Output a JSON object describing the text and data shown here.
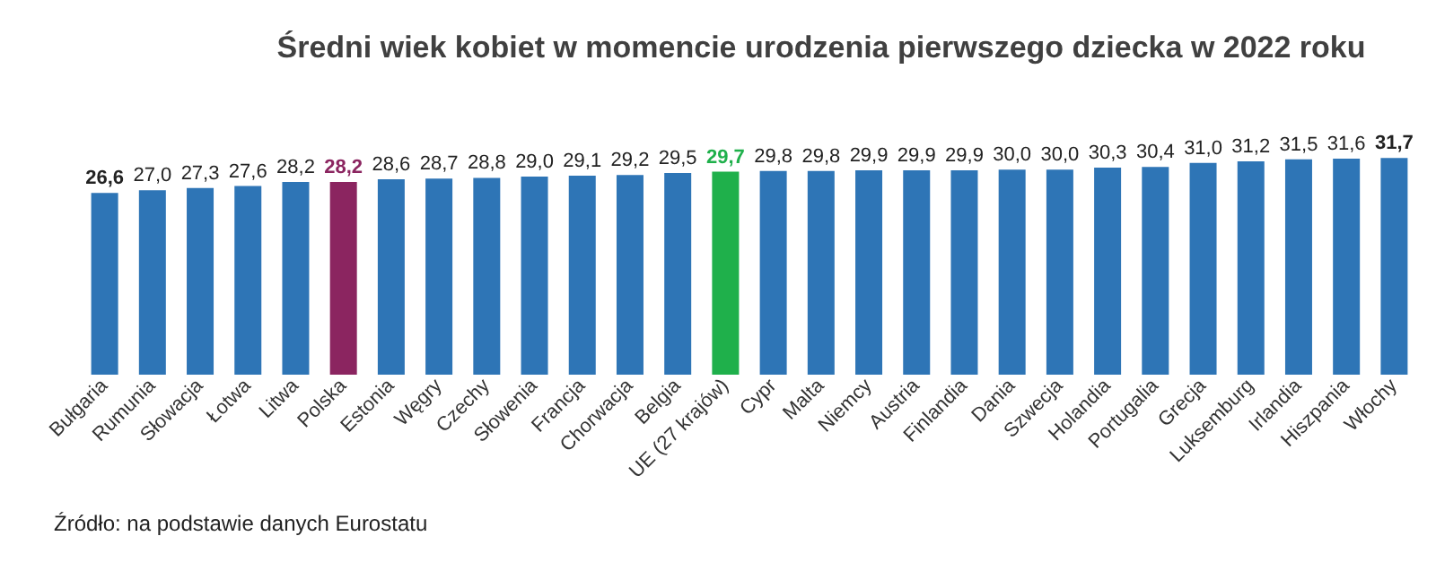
{
  "chart_data": {
    "type": "bar",
    "title": "Średni wiek kobiet w momencie urodzenia pierwszego dziecka w 2022 roku",
    "categories": [
      "Bułgaria",
      "Rumunia",
      "Słowacja",
      "Łotwa",
      "Litwa",
      "Polska",
      "Estonia",
      "Węgry",
      "Czechy",
      "Słowenia",
      "Francja",
      "Chorwacja",
      "Belgia",
      "UE (27 krajów)",
      "Cypr",
      "Malta",
      "Niemcy",
      "Austria",
      "Finlandia",
      "Dania",
      "Szwecja",
      "Holandia",
      "Portugalia",
      "Grecja",
      "Luksemburg",
      "Irlandia",
      "Hiszpania",
      "Włochy"
    ],
    "values": [
      26.6,
      27.0,
      27.3,
      27.6,
      28.2,
      28.2,
      28.6,
      28.7,
      28.8,
      29.0,
      29.1,
      29.2,
      29.5,
      29.7,
      29.8,
      29.8,
      29.9,
      29.9,
      29.9,
      30.0,
      30.0,
      30.3,
      30.4,
      31.0,
      31.2,
      31.5,
      31.6,
      31.7
    ],
    "colors": [
      "#2e75b6",
      "#2e75b6",
      "#2e75b6",
      "#2e75b6",
      "#2e75b6",
      "#8b2560",
      "#2e75b6",
      "#2e75b6",
      "#2e75b6",
      "#2e75b6",
      "#2e75b6",
      "#2e75b6",
      "#2e75b6",
      "#1fb04b",
      "#2e75b6",
      "#2e75b6",
      "#2e75b6",
      "#2e75b6",
      "#2e75b6",
      "#2e75b6",
      "#2e75b6",
      "#2e75b6",
      "#2e75b6",
      "#2e75b6",
      "#2e75b6",
      "#2e75b6",
      "#2e75b6",
      "#2e75b6"
    ],
    "value_labels": [
      "26,6",
      "27,0",
      "27,3",
      "27,6",
      "28,2",
      "28,2",
      "28,6",
      "28,7",
      "28,8",
      "29,0",
      "29,1",
      "29,2",
      "29,5",
      "29,7",
      "29,8",
      "29,8",
      "29,9",
      "29,9",
      "29,9",
      "30,0",
      "30,0",
      "30,3",
      "30,4",
      "31,0",
      "31,2",
      "31,5",
      "31,6",
      "31,7"
    ],
    "ylim": [
      0,
      32
    ],
    "tick_labels": "x",
    "annotations": [
      "Źródło: na podstawie danych Eurostatu"
    ]
  }
}
